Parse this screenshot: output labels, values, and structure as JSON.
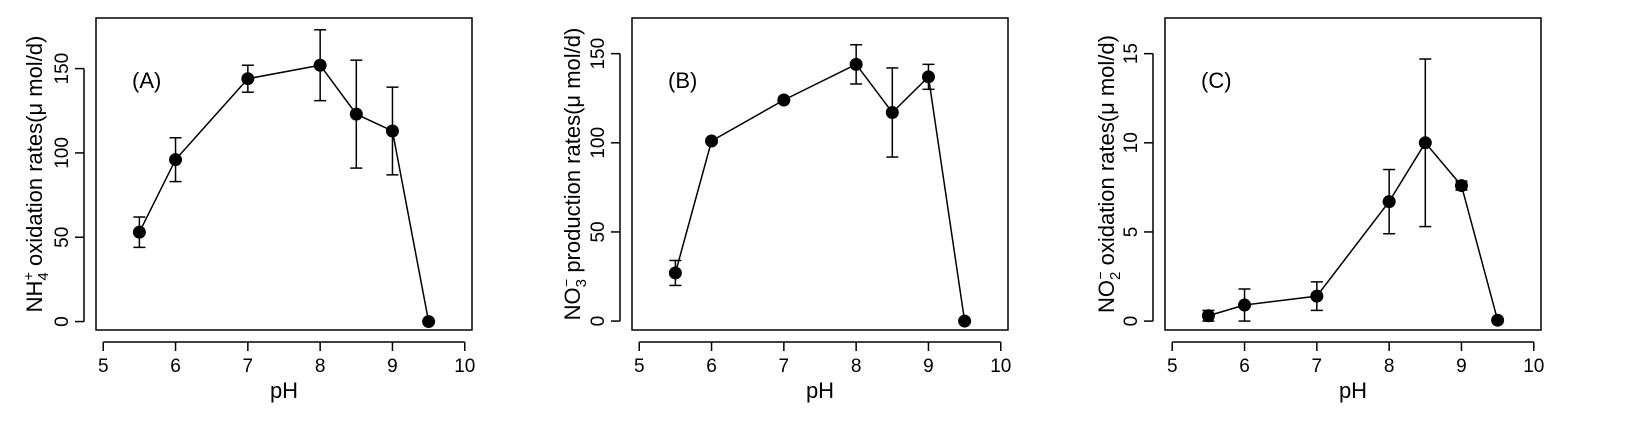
{
  "chart_data": [
    {
      "type": "line",
      "panel_label": "(A)",
      "xlabel": "pH",
      "ylabel": {
        "prefix": "NH",
        "sub": "4",
        "sup": "+",
        "suffix": " oxidation rates(μ mol/d)"
      },
      "xlim": [
        4.9,
        10.1
      ],
      "ylim": [
        -5,
        180
      ],
      "xticks": [
        5,
        6,
        7,
        8,
        9,
        10
      ],
      "yticks": [
        0,
        50,
        100,
        150
      ],
      "x": [
        5.5,
        6,
        7,
        8,
        8.5,
        9,
        9.5
      ],
      "y": [
        53,
        96,
        144,
        152,
        123,
        113,
        0
      ],
      "err": [
        9,
        13,
        8,
        21,
        32,
        26,
        0
      ],
      "color": "#000000"
    },
    {
      "type": "line",
      "panel_label": "(B)",
      "xlabel": "pH",
      "ylabel": {
        "prefix": "NO",
        "sub": "3",
        "sup": "−",
        "suffix": " production rates(μ mol/d)"
      },
      "xlim": [
        4.9,
        10.1
      ],
      "ylim": [
        -5,
        170
      ],
      "xticks": [
        5,
        6,
        7,
        8,
        9,
        10
      ],
      "yticks": [
        0,
        50,
        100,
        150
      ],
      "x": [
        5.5,
        6,
        7,
        8,
        8.5,
        9,
        9.5
      ],
      "y": [
        27,
        101,
        124,
        144,
        117,
        137,
        0
      ],
      "err": [
        7,
        0,
        0,
        11,
        25,
        7,
        0
      ],
      "color": "#000000"
    },
    {
      "type": "line",
      "panel_label": "(C)",
      "xlabel": "pH",
      "ylabel": {
        "prefix": "NO",
        "sub": "2",
        "sup": "−",
        "suffix": " oxidation rates(μ mol/d)"
      },
      "xlim": [
        4.9,
        10.1
      ],
      "ylim": [
        -0.5,
        17
      ],
      "xticks": [
        5,
        6,
        7,
        8,
        9,
        10
      ],
      "yticks": [
        0,
        5,
        10,
        15
      ],
      "x": [
        5.5,
        6,
        7,
        8,
        8.5,
        9,
        9.5
      ],
      "y": [
        0.3,
        0.9,
        1.4,
        6.7,
        10.0,
        7.6,
        0.05
      ],
      "err": [
        0.3,
        0.9,
        0.8,
        1.8,
        4.7,
        0.25,
        0
      ],
      "color": "#000000"
    }
  ]
}
